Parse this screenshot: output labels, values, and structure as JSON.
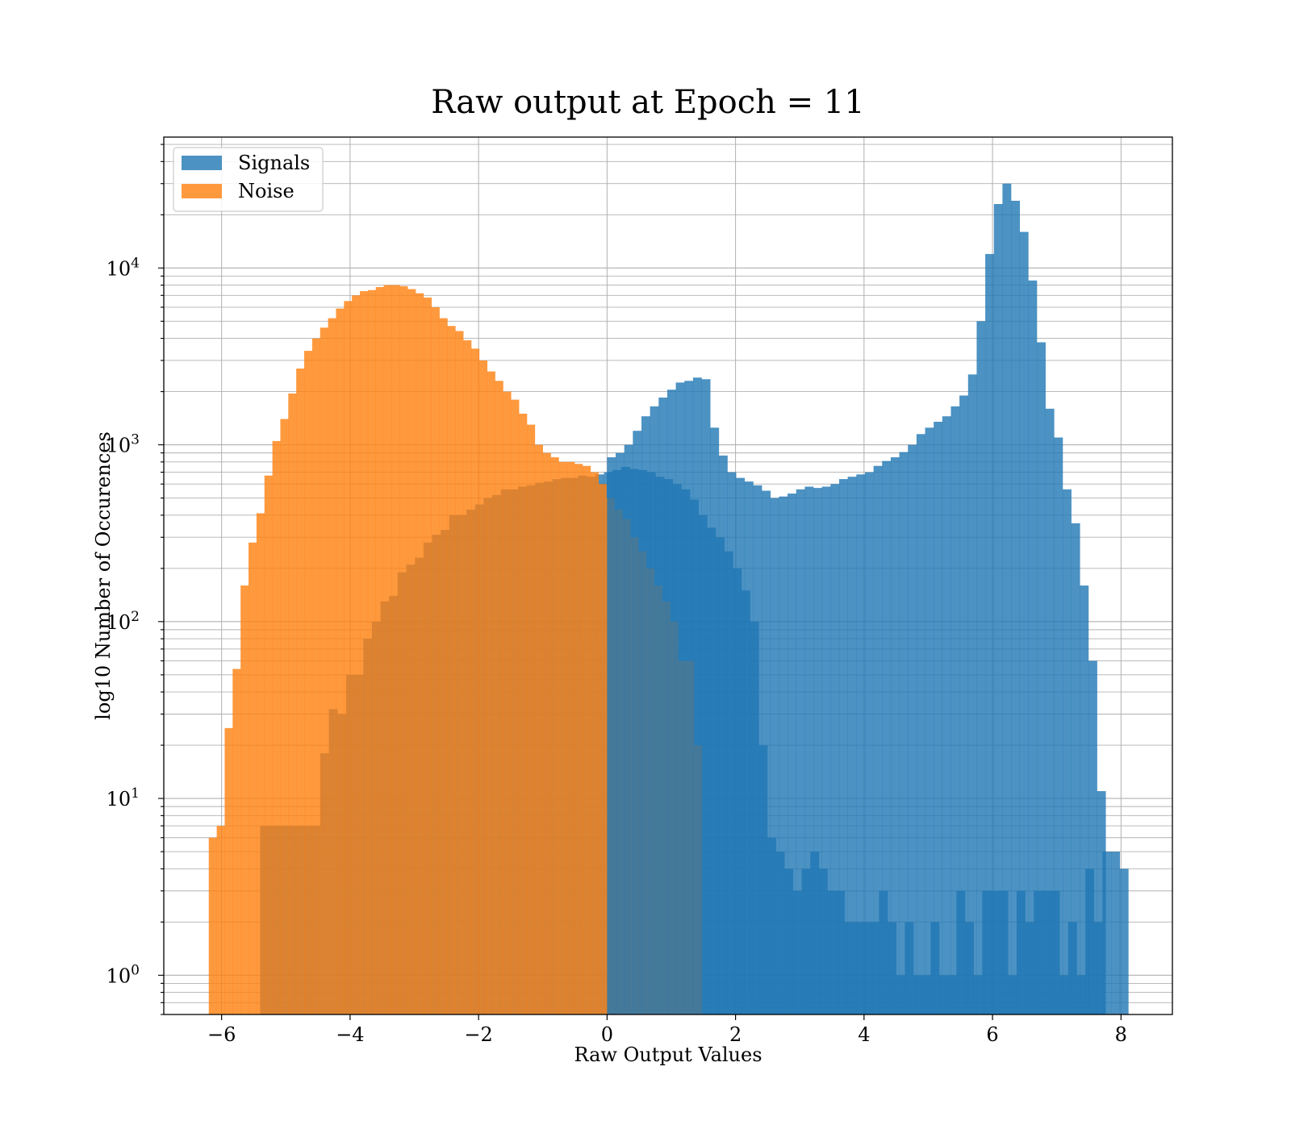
{
  "chart_data": {
    "type": "bar",
    "title": "Raw output at Epoch = 11",
    "xlabel": "Raw Output Values",
    "ylabel": "log10 Number of Occurences",
    "xlim": [
      -6.9,
      8.8
    ],
    "ylim": [
      0.6,
      55000
    ],
    "yscale": "log",
    "grid": true,
    "legend_position": "top-left",
    "x_ticks": [
      -6,
      -4,
      -2,
      0,
      2,
      4,
      6,
      8
    ],
    "x_tick_labels": [
      "−6",
      "−4",
      "−2",
      "0",
      "2",
      "4",
      "6",
      "8"
    ],
    "y_ticks": [
      {
        "value": 1,
        "base": "10",
        "exp": "0"
      },
      {
        "value": 10,
        "base": "10",
        "exp": "1"
      },
      {
        "value": 100,
        "base": "10",
        "exp": "2"
      },
      {
        "value": 1000,
        "base": "10",
        "exp": "3"
      },
      {
        "value": 10000,
        "base": "10",
        "exp": "4"
      }
    ],
    "series": [
      {
        "name": "Signals",
        "color": "#1f77b4",
        "opacity": 0.8,
        "bin_start": -5.4,
        "bin_width": 0.1338,
        "values": [
          7,
          7,
          7,
          7,
          7,
          7,
          7,
          18,
          32,
          30,
          50,
          50,
          80,
          100,
          130,
          140,
          190,
          210,
          230,
          280,
          310,
          330,
          400,
          400,
          430,
          460,
          500,
          520,
          560,
          560,
          580,
          590,
          610,
          620,
          640,
          650,
          650,
          670,
          660,
          680,
          700,
          720,
          750,
          730,
          720,
          700,
          660,
          640,
          600,
          560,
          490,
          400,
          340,
          300,
          250,
          200,
          150,
          100,
          20,
          6,
          5,
          4,
          3,
          4,
          5,
          4,
          3,
          3,
          2,
          2,
          2,
          2,
          3,
          2,
          1,
          2,
          1,
          1,
          2,
          1,
          1,
          3,
          2,
          1,
          3,
          3,
          3,
          1,
          3,
          2,
          3,
          3,
          3,
          1,
          2,
          1,
          4,
          2,
          5,
          5,
          4
        ]
      },
      {
        "name": "Noise",
        "color": "#ff7f0e",
        "opacity": 0.8,
        "bin_start": -6.2,
        "bin_width": 0.1238,
        "values": [
          6,
          7,
          25,
          54,
          160,
          280,
          410,
          670,
          1050,
          1400,
          1950,
          2700,
          3400,
          4000,
          4600,
          5200,
          5900,
          6500,
          7000,
          7400,
          7500,
          7800,
          8000,
          8000,
          7900,
          7600,
          7200,
          6800,
          6000,
          5200,
          4700,
          4400,
          3900,
          3500,
          3000,
          2600,
          2300,
          2000,
          1800,
          1500,
          1300,
          1000,
          900,
          850,
          800,
          800,
          780,
          760,
          700,
          600,
          500,
          430,
          380,
          300,
          250,
          200,
          160,
          130,
          100,
          60,
          60,
          20
        ]
      },
      {
        "name": "Signals",
        "color": "#1f77b4",
        "opacity": 0.8,
        "bin_start": 0,
        "bin_width": 0.1338,
        "values": [
          850,
          900,
          1000,
          1200,
          1450,
          1650,
          1850,
          2050,
          2250,
          2300,
          2400,
          2350,
          1250,
          870,
          700,
          650,
          620,
          590,
          550,
          500,
          510,
          530,
          560,
          580,
          570,
          580,
          600,
          640,
          660,
          680,
          700,
          760,
          810,
          850,
          910,
          1000,
          1150,
          1250,
          1350,
          1450,
          1650,
          1900,
          2500,
          5000,
          12000,
          23000,
          30000,
          24000,
          16000,
          8500,
          3800,
          1600,
          1100,
          560,
          360,
          160,
          60,
          11
        ]
      }
    ]
  }
}
